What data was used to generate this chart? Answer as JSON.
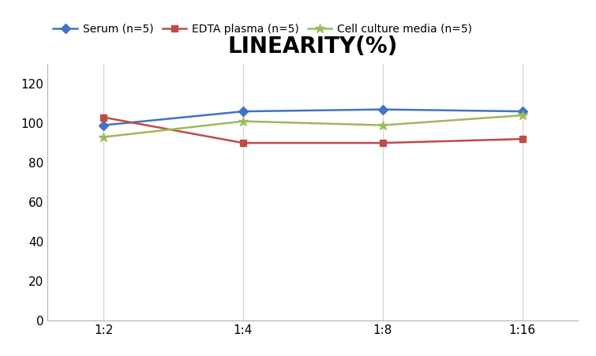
{
  "title": "LINEARITY(%)",
  "title_fontsize": 20,
  "title_fontweight": "bold",
  "x_labels": [
    "1:2",
    "1:4",
    "1:8",
    "1:16"
  ],
  "x_values": [
    0,
    1,
    2,
    3
  ],
  "series": [
    {
      "label": "Serum (n=5)",
      "values": [
        99,
        106,
        107,
        106
      ],
      "color": "#4472C4",
      "marker": "D",
      "markersize": 6,
      "linewidth": 1.8
    },
    {
      "label": "EDTA plasma (n=5)",
      "values": [
        103,
        90,
        90,
        92
      ],
      "color": "#BE4B48",
      "marker": "s",
      "markersize": 6,
      "linewidth": 1.8
    },
    {
      "label": "Cell culture media (n=5)",
      "values": [
        93,
        101,
        99,
        104
      ],
      "color": "#9BBB59",
      "marker": "*",
      "markersize": 9,
      "linewidth": 1.8
    }
  ],
  "ylim": [
    0,
    130
  ],
  "yticks": [
    0,
    20,
    40,
    60,
    80,
    100,
    120
  ],
  "ylabel": "",
  "xlabel": "",
  "background_color": "#ffffff",
  "legend_fontsize": 10,
  "tick_fontsize": 11,
  "spine_color": "#b0b0b0"
}
